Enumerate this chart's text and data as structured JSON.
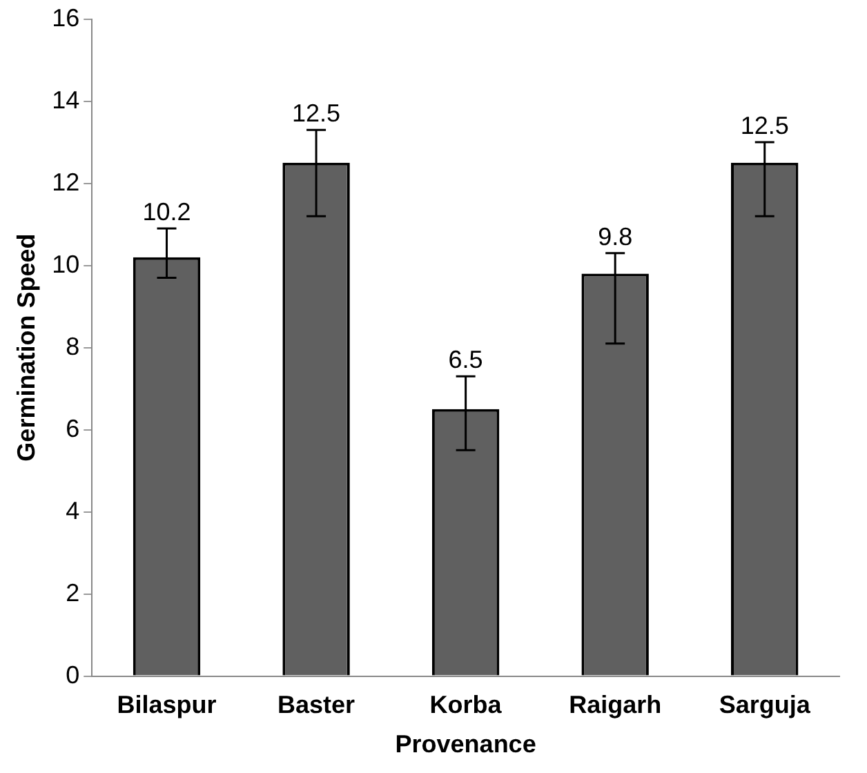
{
  "chart_data": {
    "type": "bar",
    "xlabel": "Provenance",
    "ylabel": "Germination Speed",
    "categories": [
      "Bilaspur",
      "Baster",
      "Korba",
      "Raigarh",
      "Sarguja"
    ],
    "values": [
      10.2,
      12.5,
      6.5,
      9.8,
      12.5
    ],
    "errors": [
      [
        9.7,
        10.9
      ],
      [
        11.2,
        13.3
      ],
      [
        5.5,
        7.3
      ],
      [
        8.1,
        10.3
      ],
      [
        11.2,
        13.0
      ]
    ],
    "color": "#606060",
    "ylim": [
      0,
      16
    ],
    "yticks": [
      0,
      2,
      4,
      6,
      8,
      10,
      12,
      14,
      16
    ],
    "grid": false,
    "legend": false,
    "data_labels": true
  }
}
